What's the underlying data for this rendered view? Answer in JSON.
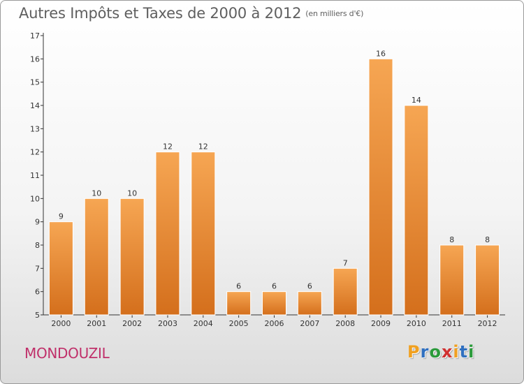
{
  "header": {
    "title": "Autres Impôts et Taxes de 2000 à 2012",
    "subtitle": "(en milliers d'€)"
  },
  "footer": {
    "commune": "MONDOUZIL",
    "logo_text": "Proxiti",
    "logo_letter_colors": [
      "#f0a020",
      "#3070c0",
      "#2a9a3a",
      "#d03030",
      "#f0a020",
      "#3070c0",
      "#2a9a3a"
    ]
  },
  "colors": {
    "bar_top": "#f6a653",
    "bar_bottom": "#d46f1c",
    "bar_edge": "#ffffff",
    "axis": "#333333",
    "text": "#333333",
    "commune": "#c0306a"
  },
  "chart_data": {
    "type": "bar",
    "title": "Autres Impôts et Taxes de 2000 à 2012",
    "subtitle": "(en milliers d'€)",
    "xlabel": "",
    "ylabel": "",
    "categories": [
      "2000",
      "2001",
      "2002",
      "2003",
      "2004",
      "2005",
      "2006",
      "2007",
      "2008",
      "2009",
      "2010",
      "2011",
      "2012"
    ],
    "values": [
      9,
      10,
      10,
      12,
      12,
      6,
      6,
      6,
      7,
      16,
      14,
      8,
      8
    ],
    "ylim": [
      5,
      17
    ],
    "yticks": [
      5,
      6,
      7,
      8,
      9,
      10,
      11,
      12,
      13,
      14,
      15,
      16,
      17
    ],
    "grid": false,
    "legend": "none"
  }
}
